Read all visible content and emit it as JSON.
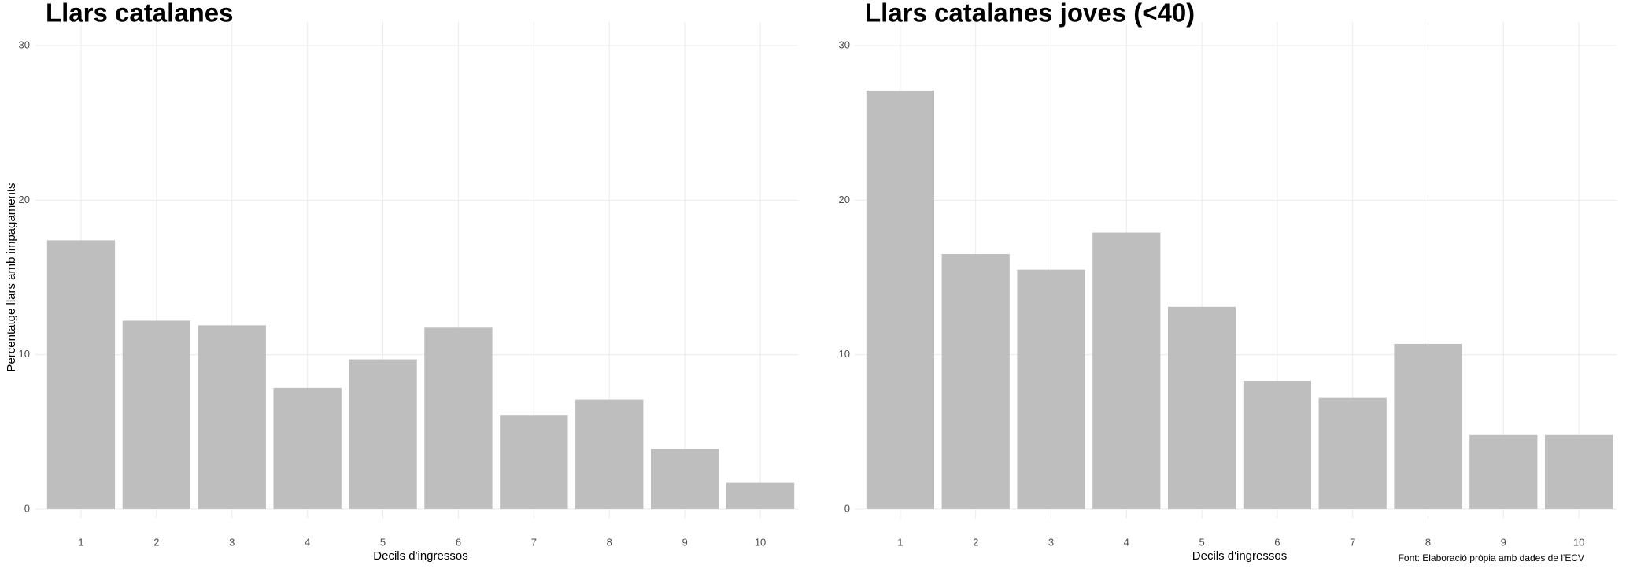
{
  "chart_data": [
    {
      "type": "bar",
      "title": "Llars catalanes",
      "x_label": "Decils d'ingressos",
      "y_label": "Percentatge llars amb impagaments",
      "categories": [
        "1",
        "2",
        "3",
        "4",
        "5",
        "6",
        "7",
        "8",
        "9",
        "10"
      ],
      "values": [
        17.4,
        12.2,
        11.9,
        7.85,
        9.7,
        11.75,
        6.1,
        7.1,
        3.9,
        1.7
      ],
      "color": "#bebebe",
      "ylim": [
        0,
        30
      ],
      "yticks": [
        0,
        10,
        20,
        30
      ],
      "grid": true
    },
    {
      "type": "bar",
      "title": "Llars catalanes joves (<40)",
      "x_label": "Decils d'ingressos",
      "caption": "Font: Elaboració pròpia amb dades de l'ECV",
      "categories": [
        "1",
        "2",
        "3",
        "4",
        "5",
        "6",
        "7",
        "8",
        "9",
        "10"
      ],
      "values": [
        27.1,
        16.5,
        15.5,
        17.9,
        13.1,
        8.3,
        7.2,
        10.7,
        4.8,
        4.8
      ],
      "color": "#bebebe",
      "ylim": [
        0,
        30
      ],
      "yticks": [
        0,
        10,
        20,
        30
      ],
      "grid": true
    }
  ]
}
